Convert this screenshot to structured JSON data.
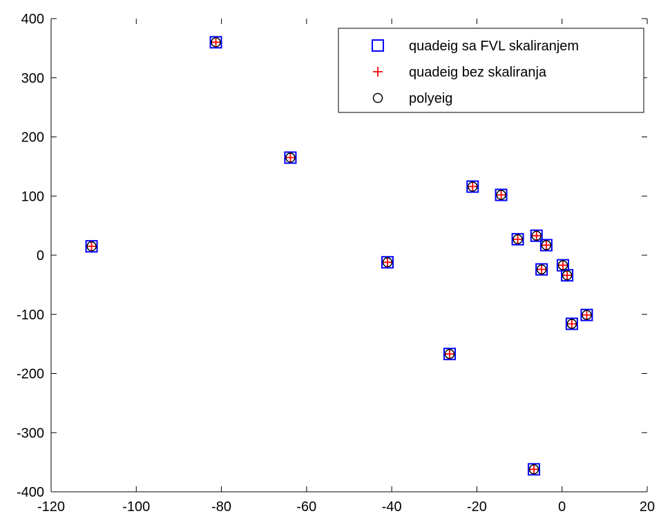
{
  "chart_data": {
    "type": "scatter",
    "title": "",
    "xlabel": "",
    "ylabel": "",
    "xlim": [
      -120,
      20
    ],
    "ylim": [
      -400,
      400
    ],
    "xticks": [
      -120,
      -100,
      -80,
      -60,
      -40,
      -20,
      0,
      20
    ],
    "yticks": [
      -400,
      -300,
      -200,
      -100,
      0,
      100,
      200,
      300,
      400
    ],
    "grid": false,
    "legend_position": "top-right",
    "series": [
      {
        "name": "quadeig sa FVL skaliranjem",
        "marker": "square",
        "color": "#0000ff",
        "points": [
          [
            -110.5,
            15
          ],
          [
            -81.3,
            360
          ],
          [
            -63.8,
            165
          ],
          [
            -41.0,
            -12
          ],
          [
            -26.4,
            -167
          ],
          [
            -21.0,
            116
          ],
          [
            -14.3,
            102
          ],
          [
            -10.4,
            27
          ],
          [
            -6.6,
            -362
          ],
          [
            -6.0,
            33
          ],
          [
            -4.8,
            -24
          ],
          [
            -3.7,
            17
          ],
          [
            0.2,
            -17
          ],
          [
            1.2,
            -34
          ],
          [
            2.3,
            -116
          ],
          [
            5.8,
            -101
          ]
        ]
      },
      {
        "name": "quadeig bez skaliranja",
        "marker": "plus",
        "color": "#ff0000",
        "points": [
          [
            -110.5,
            15
          ],
          [
            -81.3,
            360
          ],
          [
            -63.8,
            165
          ],
          [
            -41.0,
            -12
          ],
          [
            -26.4,
            -167
          ],
          [
            -21.0,
            116
          ],
          [
            -14.3,
            102
          ],
          [
            -10.4,
            27
          ],
          [
            -6.6,
            -362
          ],
          [
            -6.0,
            33
          ],
          [
            -4.8,
            -24
          ],
          [
            -3.7,
            17
          ],
          [
            0.2,
            -17
          ],
          [
            1.2,
            -34
          ],
          [
            2.3,
            -116
          ],
          [
            5.8,
            -101
          ]
        ]
      },
      {
        "name": "polyeig",
        "marker": "circle",
        "color": "#000000",
        "points": [
          [
            -110.5,
            15
          ],
          [
            -81.3,
            360
          ],
          [
            -63.8,
            165
          ],
          [
            -41.0,
            -12
          ],
          [
            -26.4,
            -167
          ],
          [
            -21.0,
            116
          ],
          [
            -14.3,
            102
          ],
          [
            -10.4,
            27
          ],
          [
            -6.6,
            -362
          ],
          [
            -6.0,
            33
          ],
          [
            -4.8,
            -24
          ],
          [
            -3.7,
            17
          ],
          [
            0.2,
            -17
          ],
          [
            1.2,
            -34
          ],
          [
            2.3,
            -116
          ],
          [
            5.8,
            -101
          ]
        ]
      }
    ]
  }
}
